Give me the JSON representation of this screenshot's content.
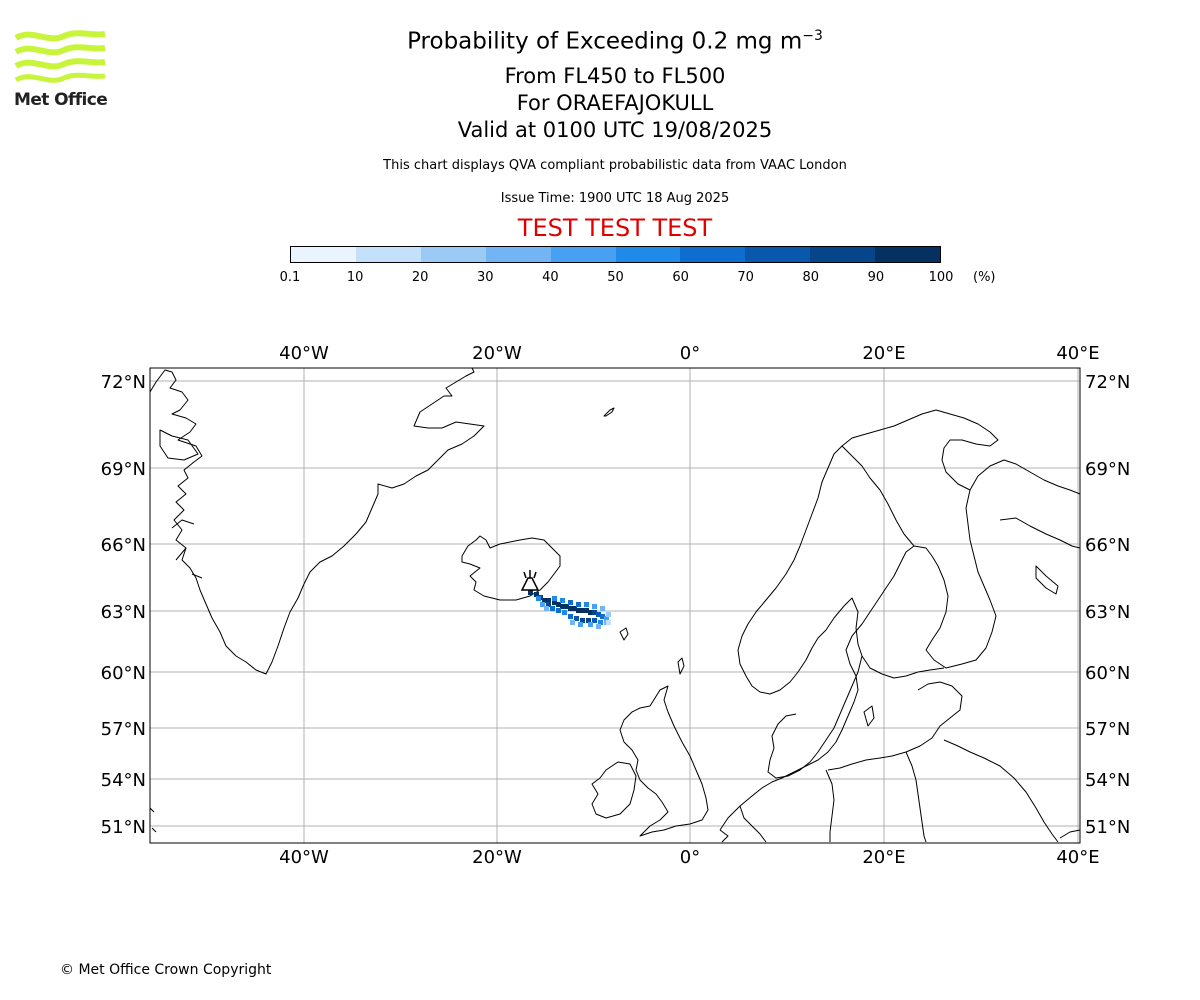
{
  "logo": {
    "text": "Met Office",
    "color": "#c8f53c"
  },
  "title": {
    "main": "Probability of Exceeding 0.2 mg m",
    "main_sup": "−3",
    "line2": "From FL450 to FL500",
    "line3": "For ORAEFAJOKULL",
    "line4": "Valid at 0100 UTC 19/08/2025",
    "note": "This chart displays QVA compliant probabilistic data from VAAC London",
    "issue": "Issue Time: 1900 UTC 18 Aug 2025",
    "test_banner": "TEST TEST TEST"
  },
  "colorbar": {
    "ticks": [
      "0.1",
      "10",
      "20",
      "30",
      "40",
      "50",
      "60",
      "70",
      "80",
      "90",
      "100"
    ],
    "unit": "(%)",
    "colors": [
      "#eaf4ff",
      "#c4e0fb",
      "#9ccaf7",
      "#72b4f4",
      "#48a0f2",
      "#1f8ae8",
      "#0e6ed0",
      "#0a58ad",
      "#07458a",
      "#04315f"
    ]
  },
  "map": {
    "lon_range": [
      -56,
      40
    ],
    "lat_range": [
      50,
      72.5
    ],
    "lon_labels": [
      "40°W",
      "20°W",
      "0°",
      "20°E",
      "40°E"
    ],
    "lat_labels": [
      "72°N",
      "69°N",
      "66°N",
      "63°N",
      "60°N",
      "57°N",
      "54°N",
      "51°N"
    ],
    "volcano": "ORAEFAJOKULL"
  },
  "copyright": "© Met Office Crown Copyright"
}
